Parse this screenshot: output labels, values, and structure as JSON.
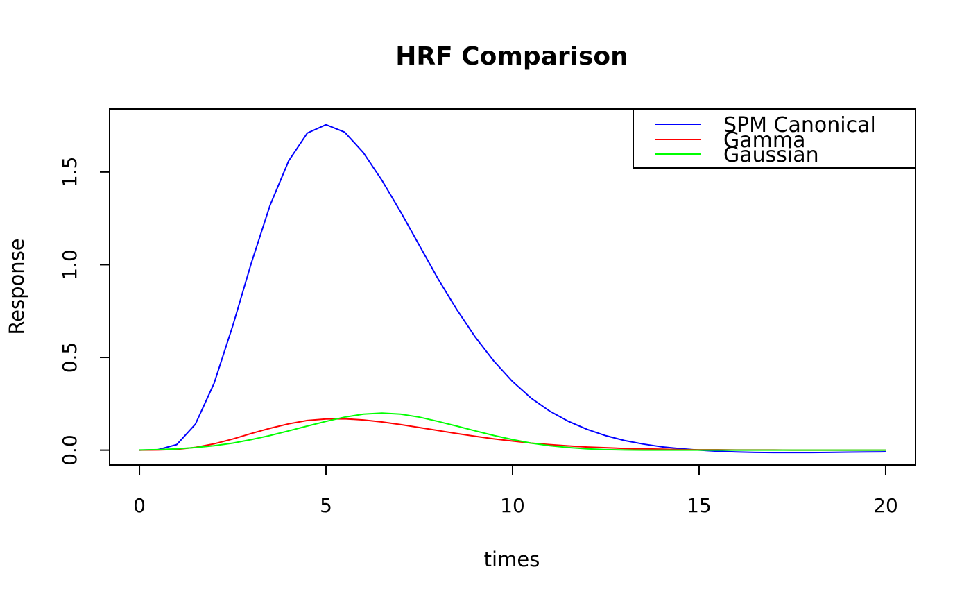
{
  "chart_data": {
    "type": "line",
    "title": "HRF Comparison",
    "xlabel": "times",
    "ylabel": "Response",
    "xlim": [
      -0.8,
      20.8
    ],
    "ylim": [
      -0.08,
      1.84
    ],
    "x_ticks": [
      0,
      5,
      10,
      15,
      20
    ],
    "x_tick_labels": [
      "0",
      "5",
      "10",
      "15",
      "20"
    ],
    "y_ticks": [
      0.0,
      0.5,
      1.0,
      1.5
    ],
    "y_tick_labels": [
      "0.0",
      "0.5",
      "1.0",
      "1.5"
    ],
    "grid": false,
    "legend_position": "top-right",
    "x": [
      0,
      0.5,
      1,
      1.5,
      2,
      2.5,
      3,
      3.5,
      4,
      4.5,
      5,
      5.5,
      6,
      6.5,
      7,
      7.5,
      8,
      8.5,
      9,
      9.5,
      10,
      10.5,
      11,
      11.5,
      12,
      12.5,
      13,
      13.5,
      14,
      14.5,
      15,
      15.5,
      16,
      16.5,
      17,
      17.5,
      18,
      18.5,
      19,
      19.5,
      20
    ],
    "series": [
      {
        "name": "SPM Canonical",
        "color": "#0000ff",
        "values": [
          0,
          0.003,
          0.03,
          0.14,
          0.36,
          0.67,
          1.01,
          1.32,
          1.56,
          1.71,
          1.755,
          1.715,
          1.605,
          1.455,
          1.285,
          1.105,
          0.925,
          0.76,
          0.61,
          0.48,
          0.37,
          0.28,
          0.21,
          0.155,
          0.112,
          0.078,
          0.052,
          0.033,
          0.018,
          0.008,
          0.0,
          -0.006,
          -0.01,
          -0.012,
          -0.013,
          -0.013,
          -0.013,
          -0.012,
          -0.011,
          -0.01,
          -0.009
        ]
      },
      {
        "name": "Gamma",
        "color": "#ff0000",
        "values": [
          0,
          0.001,
          0.004,
          0.015,
          0.034,
          0.06,
          0.09,
          0.118,
          0.142,
          0.16,
          0.168,
          0.169,
          0.163,
          0.152,
          0.138,
          0.122,
          0.106,
          0.09,
          0.075,
          0.061,
          0.049,
          0.038,
          0.03,
          0.023,
          0.017,
          0.013,
          0.009,
          0.007,
          0.005,
          0.003,
          0.002,
          0.002,
          0.001,
          0.001,
          0.001,
          0,
          0,
          0,
          0,
          0,
          0
        ]
      },
      {
        "name": "Gaussian",
        "color": "#00ff00",
        "values": [
          0.001,
          0.003,
          0.007,
          0.014,
          0.024,
          0.038,
          0.057,
          0.079,
          0.104,
          0.13,
          0.155,
          0.178,
          0.194,
          0.2,
          0.194,
          0.178,
          0.155,
          0.13,
          0.104,
          0.079,
          0.057,
          0.038,
          0.024,
          0.014,
          0.007,
          0.003,
          0.001,
          0,
          0,
          0,
          0,
          0,
          0,
          0,
          0,
          0,
          0,
          0,
          0,
          0,
          0
        ]
      }
    ]
  }
}
